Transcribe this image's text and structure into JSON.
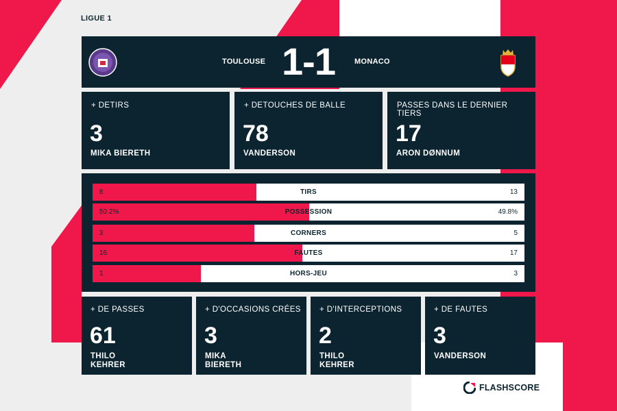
{
  "league": "LIGUE 1",
  "match": {
    "home_team": "TOULOUSE",
    "away_team": "MONACO",
    "score": "1-1",
    "home_crest_icon": "toulouse-crest-icon",
    "away_crest_icon": "monaco-crest-icon"
  },
  "top_stats": [
    {
      "label": "+ DETIRS",
      "value": "3",
      "player": "MIKA BIERETH"
    },
    {
      "label": "+ DETOUCHES DE BALLE",
      "value": "78",
      "player": "VANDERSON"
    },
    {
      "label": "PASSES DANS LE DERNIER TIERS",
      "value": "17",
      "player": "ARON DØNNUM"
    }
  ],
  "comparison": [
    {
      "label": "TIRS",
      "home": "8",
      "away": "13",
      "home_share": 0.38
    },
    {
      "label": "POSSESSION",
      "home": "50.2%",
      "away": "49.8%",
      "home_share": 0.502
    },
    {
      "label": "CORNERS",
      "home": "3",
      "away": "5",
      "home_share": 0.375
    },
    {
      "label": "FAUTES",
      "home": "16",
      "away": "17",
      "home_share": 0.485
    },
    {
      "label": "HORS-JEU",
      "home": "1",
      "away": "3",
      "home_share": 0.25
    }
  ],
  "bottom_stats": [
    {
      "label": "+ DE PASSES",
      "value": "61",
      "player": "THILO KEHRER"
    },
    {
      "label": "+ D'OCCASIONS CRÉES",
      "value": "3",
      "player": "MIKA BIERETH"
    },
    {
      "label": "+ D'INTERCEPTIONS",
      "value": "2",
      "player": "THILO KEHRER"
    },
    {
      "label": "+ DE FAUTES",
      "value": "3",
      "player": "VANDERSON"
    }
  ],
  "brand": {
    "name": "FLASHSCORE",
    "icon": "flashscore-logo-icon"
  },
  "colors": {
    "accent": "#f0184a",
    "panel": "#0b2430",
    "background": "#eeeeee",
    "bar_track": "#ffffff"
  }
}
